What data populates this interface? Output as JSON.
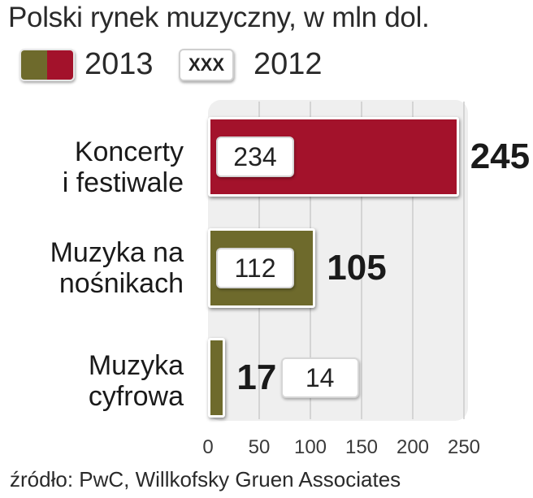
{
  "chart_data": {
    "type": "bar",
    "orientation": "horizontal",
    "title": "Polski rynek muzyczny, w mln dol.",
    "categories": [
      "Koncerty\ni festiwale",
      "Muzyka na\nnośnikach",
      "Muzyka\ncyfrowa"
    ],
    "series": [
      {
        "name": "2013",
        "values": [
          245,
          105,
          17
        ],
        "colors": [
          "#a3122b",
          "#6e6a2c",
          "#6e6a2c"
        ]
      },
      {
        "name": "2012",
        "values": [
          234,
          112,
          14
        ]
      }
    ],
    "legend": {
      "sample_text_2012": "XXX"
    },
    "xlim": [
      0,
      250
    ],
    "x_ticks": [
      "0",
      "50",
      "100",
      "150",
      "200",
      "250"
    ],
    "grid": true,
    "legend_position": "top-left",
    "source": "źródło:  PwC, Willkofsky Gruen Associates"
  }
}
